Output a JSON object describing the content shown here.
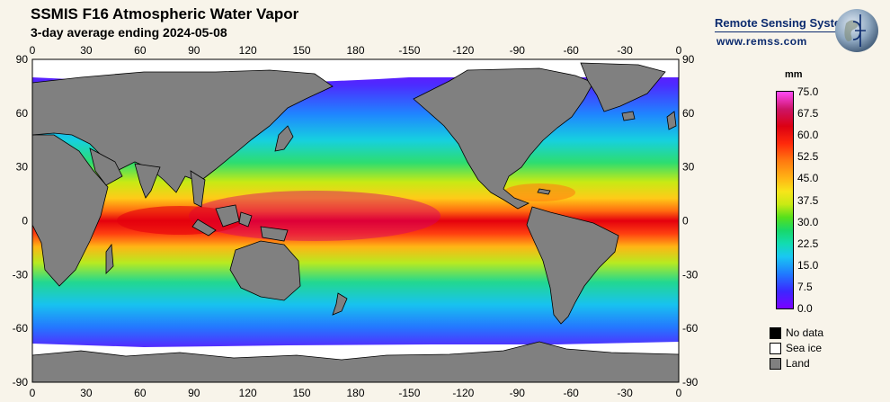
{
  "header": {
    "title": "SSMIS F16 Atmospheric Water Vapor",
    "subtitle": "3-day average ending 2024-05-08"
  },
  "brand": {
    "name": "Remote Sensing Systems",
    "url": "www.remss.com",
    "logo_icon": "globe-icon"
  },
  "map": {
    "lon_labels": [
      "0",
      "30",
      "60",
      "90",
      "120",
      "150",
      "180",
      "-150",
      "-120",
      "-90",
      "-60",
      "-30",
      "0"
    ],
    "lat_labels": [
      "90",
      "60",
      "30",
      "0",
      "-30",
      "-60",
      "-90"
    ],
    "colors": {
      "land": "#808080",
      "sea_ice": "#ffffff",
      "no_data": "#000000"
    }
  },
  "colorbar": {
    "unit": "mm",
    "labels": [
      "75.0",
      "67.5",
      "60.0",
      "52.5",
      "45.0",
      "37.5",
      "30.0",
      "22.5",
      "15.0",
      "7.5",
      "0.0"
    ]
  },
  "legend": {
    "items": [
      {
        "label": "No data",
        "color": "#000000"
      },
      {
        "label": "Sea ice",
        "color": "#ffffff"
      },
      {
        "label": "Land",
        "color": "#808080"
      }
    ]
  }
}
